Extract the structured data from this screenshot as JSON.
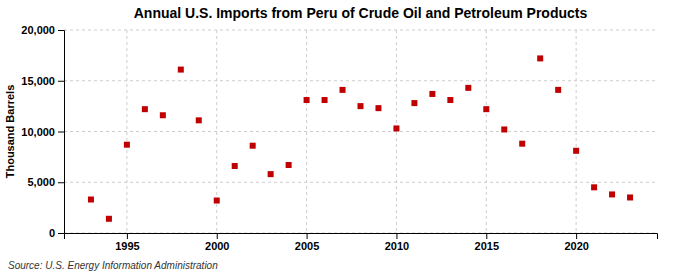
{
  "chart_data": {
    "type": "scatter",
    "title": "Annual U.S. Imports from Peru of Crude Oil and Petroleum Products",
    "y_label": "Thousand Barrels",
    "source": "Source: U.S. Energy Information Administration",
    "x": [
      1993,
      1994,
      1995,
      1996,
      1997,
      1998,
      1999,
      2000,
      2001,
      2002,
      2003,
      2004,
      2005,
      2006,
      2007,
      2008,
      2009,
      2010,
      2011,
      2012,
      2013,
      2014,
      2015,
      2016,
      2017,
      2018,
      2019,
      2020,
      2021,
      2022,
      2023
    ],
    "values": [
      3300,
      1400,
      8700,
      12200,
      11600,
      16100,
      11100,
      3200,
      6600,
      8600,
      5800,
      6700,
      13100,
      13100,
      14100,
      12500,
      12300,
      10300,
      12800,
      13700,
      13100,
      14300,
      12200,
      10200,
      8800,
      17200,
      14100,
      8100,
      4500,
      3800,
      3500
    ],
    "color": "#c00000",
    "marker": "square",
    "xlim": [
      1991.5,
      2024.5
    ],
    "xticks": [
      1995,
      2000,
      2005,
      2010,
      2015,
      2020
    ],
    "ylim": [
      0,
      20000
    ],
    "yticks": [
      0,
      {
        "value": 5000,
        "label": "5,000"
      },
      {
        "value": 10000,
        "label": "10,000"
      },
      {
        "value": 15000,
        "label": "15,000"
      },
      {
        "value": 20000,
        "label": "20,000"
      }
    ],
    "grid": true
  }
}
